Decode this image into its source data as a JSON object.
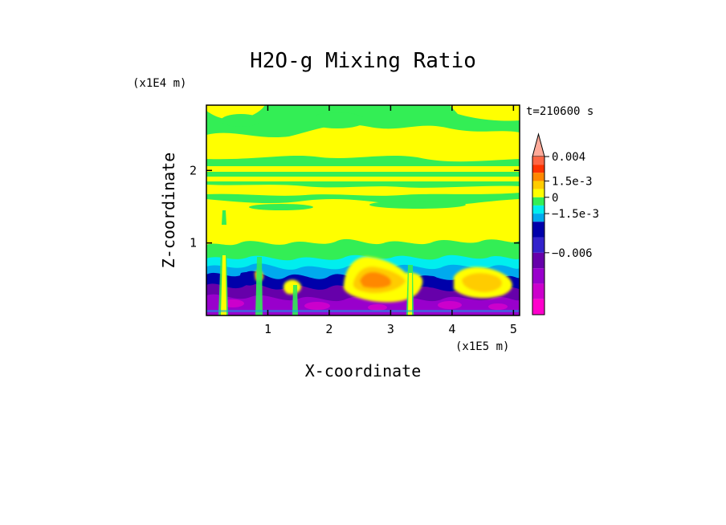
{
  "chart_data": {
    "type": "heatmap",
    "title": "H2O-g Mixing Ratio",
    "xlabel": "X-coordinate",
    "ylabel": "Z-coordinate",
    "x_scale_label": "(x1E5 m)",
    "y_scale_label": "(x1E4 m)",
    "time_label": "t=210600 s",
    "xlim": [
      0,
      5.1
    ],
    "ylim": [
      0,
      2.9
    ],
    "x_ticks": [
      1,
      2,
      3,
      4,
      5
    ],
    "x_tick_labels": [
      "1",
      "2",
      "3",
      "4",
      "5"
    ],
    "y_ticks": [
      1,
      2
    ],
    "y_tick_labels": [
      "1",
      "2"
    ],
    "colorbar": {
      "levels": [
        -0.009,
        -0.0075,
        -0.006,
        -0.0045,
        -0.003,
        -0.0015,
        -0.00075,
        0,
        0.00075,
        0.0015,
        0.00225,
        0.003,
        0.004
      ],
      "colors": [
        "#ff00cc",
        "#cc00cc",
        "#9900cc",
        "#6600aa",
        "#3322cc",
        "#0000aa",
        "#00aaee",
        "#00eeee",
        "#33ee55",
        "#ffff00",
        "#ffcc00",
        "#ff8800",
        "#ff3300",
        "#ff6644",
        "#ffaa99"
      ],
      "labels": [
        {
          "value": 0.004,
          "text": "0.004"
        },
        {
          "value": 0.0015,
          "text": "1.5e-3"
        },
        {
          "value": 0,
          "text": "0"
        },
        {
          "value": -0.0015,
          "text": "−1.5e-3"
        },
        {
          "value": -0.006,
          "text": "−0.006"
        }
      ]
    },
    "field_description_layers": [
      {
        "z_range": [
          0,
          0.35
        ],
        "dominant": "-0.006 to -0.0045 (purple/magenta)"
      },
      {
        "z_range": [
          0.35,
          0.85
        ],
        "dominant": "-0.0015 to 0 (blue/cyan) with 0.0015-0.003 plumes near x=2.6 and x=4.6"
      },
      {
        "z_range": [
          0.85,
          1.9
        ],
        "dominant": "0.00075 to 0.0015 (yellow)"
      },
      {
        "z_range": [
          1.9,
          2.9
        ],
        "dominant": "0 to 0.0015 (green/yellow banded)"
      }
    ]
  }
}
